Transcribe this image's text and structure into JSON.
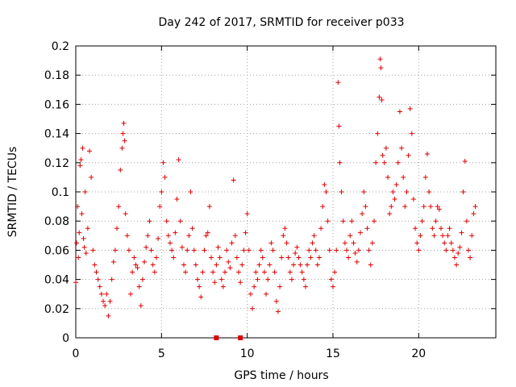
{
  "chart_data": {
    "type": "scatter",
    "title": "Day 242 of 2017, SRMTID for receiver p033",
    "xlabel": "GPS time / hours",
    "ylabel": "SRMTID / TECUs",
    "xlim": [
      0,
      24.5
    ],
    "ylim": [
      0,
      0.2
    ],
    "xticks": [
      0,
      5,
      10,
      15,
      20
    ],
    "xtick_labels": [
      "0",
      "5",
      "10",
      "15",
      "20"
    ],
    "yticks": [
      0,
      0.02,
      0.04,
      0.06,
      0.08,
      0.1,
      0.12,
      0.14,
      0.16,
      0.18,
      0.2
    ],
    "ytick_labels": [
      "0",
      "0.02",
      "0.04",
      "0.06",
      "0.08",
      "0.1",
      "0.12",
      "0.14",
      "0.16",
      "0.18",
      "0.2"
    ],
    "grid": true,
    "series_color": "#e00000",
    "marker": "+",
    "series": [
      {
        "name": "SRMTID",
        "points": [
          [
            0.0,
            0.038
          ],
          [
            0.05,
            0.065
          ],
          [
            0.1,
            0.09
          ],
          [
            0.15,
            0.055
          ],
          [
            0.2,
            0.072
          ],
          [
            0.25,
            0.118
          ],
          [
            0.3,
            0.122
          ],
          [
            0.35,
            0.085
          ],
          [
            0.4,
            0.13
          ],
          [
            0.45,
            0.068
          ],
          [
            0.5,
            0.062
          ],
          [
            0.55,
            0.1
          ],
          [
            0.6,
            0.058
          ],
          [
            0.7,
            0.075
          ],
          [
            0.8,
            0.128
          ],
          [
            0.9,
            0.11
          ],
          [
            1.0,
            0.06
          ],
          [
            1.1,
            0.05
          ],
          [
            1.2,
            0.045
          ],
          [
            1.3,
            0.04
          ],
          [
            1.4,
            0.035
          ],
          [
            1.5,
            0.03
          ],
          [
            1.6,
            0.025
          ],
          [
            1.7,
            0.022
          ],
          [
            1.8,
            0.03
          ],
          [
            1.9,
            0.015
          ],
          [
            2.0,
            0.025
          ],
          [
            2.1,
            0.04
          ],
          [
            2.2,
            0.052
          ],
          [
            2.3,
            0.06
          ],
          [
            2.4,
            0.075
          ],
          [
            2.5,
            0.09
          ],
          [
            2.6,
            0.115
          ],
          [
            2.7,
            0.13
          ],
          [
            2.75,
            0.14
          ],
          [
            2.8,
            0.147
          ],
          [
            2.85,
            0.135
          ],
          [
            2.9,
            0.085
          ],
          [
            3.0,
            0.07
          ],
          [
            3.1,
            0.06
          ],
          [
            3.2,
            0.03
          ],
          [
            3.3,
            0.045
          ],
          [
            3.4,
            0.055
          ],
          [
            3.5,
            0.05
          ],
          [
            3.6,
            0.048
          ],
          [
            3.7,
            0.035
          ],
          [
            3.8,
            0.022
          ],
          [
            3.9,
            0.04
          ],
          [
            4.0,
            0.052
          ],
          [
            4.1,
            0.062
          ],
          [
            4.2,
            0.07
          ],
          [
            4.3,
            0.08
          ],
          [
            4.4,
            0.06
          ],
          [
            4.5,
            0.05
          ],
          [
            4.6,
            0.045
          ],
          [
            4.7,
            0.055
          ],
          [
            4.8,
            0.068
          ],
          [
            4.9,
            0.09
          ],
          [
            5.0,
            0.1
          ],
          [
            5.1,
            0.12
          ],
          [
            5.2,
            0.11
          ],
          [
            5.3,
            0.08
          ],
          [
            5.4,
            0.07
          ],
          [
            5.5,
            0.065
          ],
          [
            5.6,
            0.06
          ],
          [
            5.7,
            0.055
          ],
          [
            5.8,
            0.072
          ],
          [
            5.9,
            0.095
          ],
          [
            6.0,
            0.122
          ],
          [
            6.1,
            0.08
          ],
          [
            6.2,
            0.062
          ],
          [
            6.3,
            0.05
          ],
          [
            6.4,
            0.045
          ],
          [
            6.5,
            0.06
          ],
          [
            6.6,
            0.07
          ],
          [
            6.7,
            0.1
          ],
          [
            6.8,
            0.075
          ],
          [
            6.9,
            0.06
          ],
          [
            7.0,
            0.05
          ],
          [
            7.1,
            0.04
          ],
          [
            7.2,
            0.035
          ],
          [
            7.3,
            0.028
          ],
          [
            7.4,
            0.045
          ],
          [
            7.5,
            0.06
          ],
          [
            7.6,
            0.07
          ],
          [
            7.7,
            0.072
          ],
          [
            7.8,
            0.09
          ],
          [
            7.9,
            0.055
          ],
          [
            8.0,
            0.045
          ],
          [
            8.1,
            0.038
          ],
          [
            8.2,
            0.05
          ],
          [
            8.3,
            0.062
          ],
          [
            8.4,
            0.055
          ],
          [
            8.5,
            0.04
          ],
          [
            8.6,
            0.035
          ],
          [
            8.7,
            0.045
          ],
          [
            8.8,
            0.06
          ],
          [
            8.9,
            0.052
          ],
          [
            9.0,
            0.048
          ],
          [
            9.1,
            0.065
          ],
          [
            9.2,
            0.108
          ],
          [
            9.3,
            0.07
          ],
          [
            9.4,
            0.055
          ],
          [
            9.5,
            0.045
          ],
          [
            9.6,
            0.038
          ],
          [
            9.7,
            0.05
          ],
          [
            9.8,
            0.06
          ],
          [
            9.9,
            0.072
          ],
          [
            10.0,
            0.085
          ],
          [
            10.1,
            0.06
          ],
          [
            10.2,
            0.03
          ],
          [
            10.3,
            0.02
          ],
          [
            10.4,
            0.035
          ],
          [
            10.5,
            0.045
          ],
          [
            10.6,
            0.04
          ],
          [
            10.7,
            0.05
          ],
          [
            10.8,
            0.06
          ],
          [
            10.9,
            0.055
          ],
          [
            11.0,
            0.045
          ],
          [
            11.1,
            0.03
          ],
          [
            11.2,
            0.04
          ],
          [
            11.3,
            0.05
          ],
          [
            11.4,
            0.065
          ],
          [
            11.5,
            0.06
          ],
          [
            11.6,
            0.045
          ],
          [
            11.7,
            0.025
          ],
          [
            11.8,
            0.018
          ],
          [
            11.9,
            0.035
          ],
          [
            12.0,
            0.055
          ],
          [
            12.1,
            0.07
          ],
          [
            12.2,
            0.075
          ],
          [
            12.3,
            0.065
          ],
          [
            12.4,
            0.055
          ],
          [
            12.5,
            0.045
          ],
          [
            12.6,
            0.04
          ],
          [
            12.7,
            0.05
          ],
          [
            12.8,
            0.058
          ],
          [
            12.9,
            0.062
          ],
          [
            13.0,
            0.055
          ],
          [
            13.1,
            0.05
          ],
          [
            13.2,
            0.045
          ],
          [
            13.3,
            0.04
          ],
          [
            13.4,
            0.035
          ],
          [
            13.5,
            0.05
          ],
          [
            13.6,
            0.06
          ],
          [
            13.7,
            0.055
          ],
          [
            13.8,
            0.065
          ],
          [
            13.9,
            0.07
          ],
          [
            14.0,
            0.06
          ],
          [
            14.1,
            0.05
          ],
          [
            14.2,
            0.055
          ],
          [
            14.3,
            0.075
          ],
          [
            14.4,
            0.09
          ],
          [
            14.5,
            0.105
          ],
          [
            14.6,
            0.1
          ],
          [
            14.7,
            0.08
          ],
          [
            14.8,
            0.06
          ],
          [
            14.9,
            0.04
          ],
          [
            15.0,
            0.035
          ],
          [
            15.1,
            0.045
          ],
          [
            15.2,
            0.06
          ],
          [
            15.3,
            0.175
          ],
          [
            15.35,
            0.145
          ],
          [
            15.4,
            0.12
          ],
          [
            15.5,
            0.1
          ],
          [
            15.6,
            0.08
          ],
          [
            15.7,
            0.065
          ],
          [
            15.8,
            0.06
          ],
          [
            15.9,
            0.055
          ],
          [
            16.0,
            0.07
          ],
          [
            16.1,
            0.08
          ],
          [
            16.2,
            0.065
          ],
          [
            16.3,
            0.058
          ],
          [
            16.4,
            0.052
          ],
          [
            16.5,
            0.06
          ],
          [
            16.6,
            0.072
          ],
          [
            16.7,
            0.085
          ],
          [
            16.8,
            0.1
          ],
          [
            16.9,
            0.09
          ],
          [
            17.0,
            0.075
          ],
          [
            17.1,
            0.06
          ],
          [
            17.2,
            0.05
          ],
          [
            17.3,
            0.065
          ],
          [
            17.4,
            0.08
          ],
          [
            17.5,
            0.12
          ],
          [
            17.6,
            0.14
          ],
          [
            17.7,
            0.165
          ],
          [
            17.75,
            0.191
          ],
          [
            17.8,
            0.185
          ],
          [
            17.85,
            0.163
          ],
          [
            17.9,
            0.125
          ],
          [
            18.0,
            0.12
          ],
          [
            18.1,
            0.13
          ],
          [
            18.2,
            0.11
          ],
          [
            18.3,
            0.085
          ],
          [
            18.4,
            0.09
          ],
          [
            18.5,
            0.1
          ],
          [
            18.6,
            0.095
          ],
          [
            18.7,
            0.105
          ],
          [
            18.8,
            0.12
          ],
          [
            18.9,
            0.155
          ],
          [
            19.0,
            0.13
          ],
          [
            19.1,
            0.11
          ],
          [
            19.2,
            0.09
          ],
          [
            19.3,
            0.1
          ],
          [
            19.4,
            0.125
          ],
          [
            19.5,
            0.157
          ],
          [
            19.6,
            0.14
          ],
          [
            19.7,
            0.095
          ],
          [
            19.8,
            0.075
          ],
          [
            19.9,
            0.065
          ],
          [
            20.0,
            0.06
          ],
          [
            20.1,
            0.07
          ],
          [
            20.2,
            0.08
          ],
          [
            20.3,
            0.09
          ],
          [
            20.4,
            0.11
          ],
          [
            20.5,
            0.126
          ],
          [
            20.6,
            0.1
          ],
          [
            20.7,
            0.09
          ],
          [
            20.8,
            0.075
          ],
          [
            20.9,
            0.07
          ],
          [
            21.0,
            0.08
          ],
          [
            21.1,
            0.09
          ],
          [
            21.2,
            0.088
          ],
          [
            21.3,
            0.075
          ],
          [
            21.4,
            0.07
          ],
          [
            21.5,
            0.065
          ],
          [
            21.6,
            0.06
          ],
          [
            21.7,
            0.07
          ],
          [
            21.8,
            0.075
          ],
          [
            21.9,
            0.065
          ],
          [
            22.0,
            0.06
          ],
          [
            22.1,
            0.055
          ],
          [
            22.2,
            0.05
          ],
          [
            22.3,
            0.058
          ],
          [
            22.4,
            0.062
          ],
          [
            22.5,
            0.072
          ],
          [
            22.6,
            0.1
          ],
          [
            22.7,
            0.121
          ],
          [
            22.8,
            0.08
          ],
          [
            22.9,
            0.06
          ],
          [
            23.0,
            0.055
          ],
          [
            23.1,
            0.07
          ],
          [
            23.2,
            0.085
          ],
          [
            23.3,
            0.09
          ]
        ]
      }
    ],
    "zero_markers": [
      8.2,
      9.6
    ]
  }
}
